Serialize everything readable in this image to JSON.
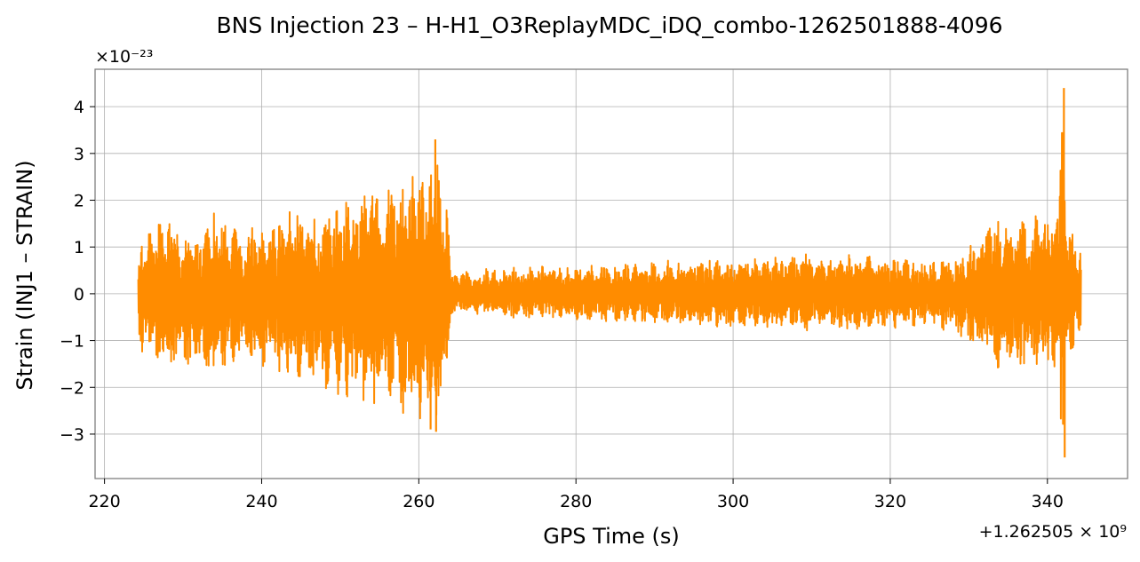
{
  "chart_data": {
    "type": "line",
    "title": "BNS Injection 23 – H-H1_O3ReplayMDC_iDQ_combo-1262501888-4096",
    "xlabel": "GPS Time (s)",
    "ylabel": "Strain (INJ1 – STRAIN)",
    "x_offset_label": "+1.262505 × 10⁹",
    "y_scale_label": "×10⁻²³",
    "xlim": [
      218.8,
      350.2
    ],
    "ylim": [
      -3.95,
      4.8
    ],
    "x_ticks": [
      220,
      240,
      260,
      280,
      300,
      320,
      340
    ],
    "x_tick_labels": [
      "220",
      "240",
      "260",
      "280",
      "300",
      "320",
      "340"
    ],
    "y_ticks": [
      -3,
      -2,
      -1,
      0,
      1,
      2,
      3,
      4
    ],
    "y_tick_labels": [
      "−3",
      "−2",
      "−1",
      "0",
      "1",
      "2",
      "3",
      "4"
    ],
    "grid": true,
    "line_color": "#ff8c00",
    "series": [
      {
        "x_range": [
          224.3,
          344.3
        ],
        "envelope_x": [
          224.3,
          226,
          228,
          230,
          232,
          234,
          236,
          238,
          240,
          242,
          244,
          246,
          248,
          250,
          252,
          254,
          256,
          258,
          260,
          261,
          262,
          263,
          263.6,
          264,
          266,
          270,
          275,
          280,
          285,
          290,
          295,
          300,
          305,
          310,
          315,
          320,
          325,
          328,
          330,
          332,
          334,
          336,
          338,
          340,
          341,
          342,
          342.4,
          343,
          344.3
        ],
        "envelope_upper": [
          1.1,
          1.4,
          1.8,
          1.3,
          1.2,
          1.8,
          1.4,
          1.5,
          1.4,
          1.6,
          1.8,
          1.7,
          1.8,
          2.0,
          2.1,
          2.3,
          2.5,
          2.6,
          2.8,
          2.6,
          3.3,
          2.0,
          2.3,
          0.5,
          0.5,
          0.55,
          0.6,
          0.6,
          0.65,
          0.7,
          0.75,
          0.75,
          0.8,
          0.85,
          0.85,
          0.8,
          0.7,
          0.8,
          1.0,
          1.4,
          1.8,
          1.7,
          1.6,
          1.9,
          1.7,
          4.4,
          1.8,
          1.4,
          1.2
        ],
        "envelope_lower": [
          -1.3,
          -1.5,
          -1.8,
          -1.5,
          -1.6,
          -1.9,
          -1.6,
          -1.5,
          -1.6,
          -1.8,
          -1.8,
          -1.9,
          -2.1,
          -2.2,
          -2.3,
          -2.4,
          -2.5,
          -2.6,
          -2.8,
          -2.9,
          -2.95,
          -2.6,
          -2.4,
          -0.45,
          -0.45,
          -0.5,
          -0.55,
          -0.6,
          -0.6,
          -0.65,
          -0.7,
          -0.75,
          -0.75,
          -0.8,
          -0.8,
          -0.75,
          -0.7,
          -0.9,
          -1.1,
          -1.3,
          -1.8,
          -1.7,
          -1.5,
          -1.8,
          -1.7,
          -3.5,
          -1.8,
          -1.3,
          -1.0
        ]
      }
    ]
  }
}
